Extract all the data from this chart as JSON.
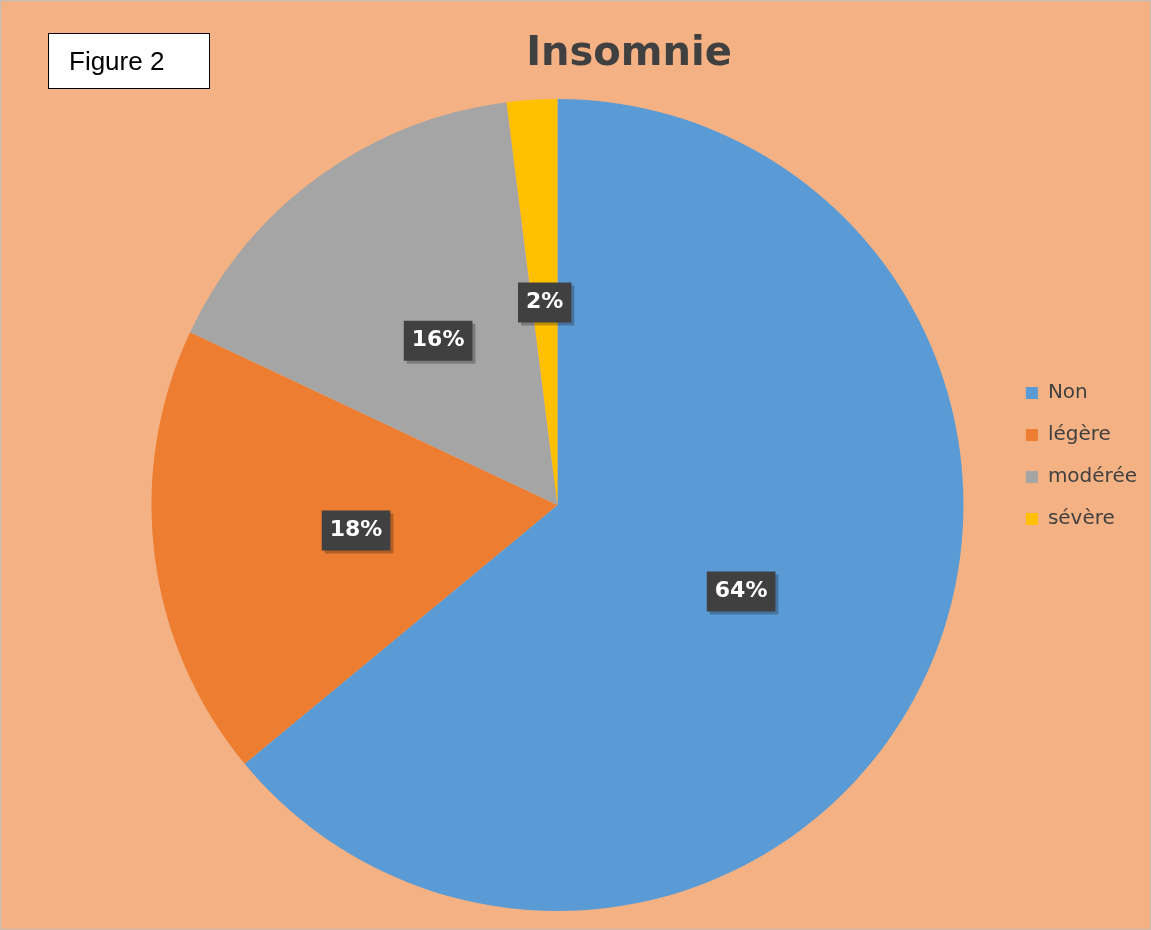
{
  "chart_data": {
    "type": "pie",
    "title": "Insomnie",
    "categories": [
      "Non",
      "légère",
      "modérée",
      "sévère"
    ],
    "values": [
      64,
      18,
      16,
      2
    ],
    "colors": [
      "#5b9bd5",
      "#ed7d31",
      "#a5a5a5",
      "#ffc000"
    ],
    "value_labels": [
      "64%",
      "18%",
      "16%",
      "2%"
    ],
    "legend": "right",
    "annotations": [
      "Figure 2"
    ]
  }
}
